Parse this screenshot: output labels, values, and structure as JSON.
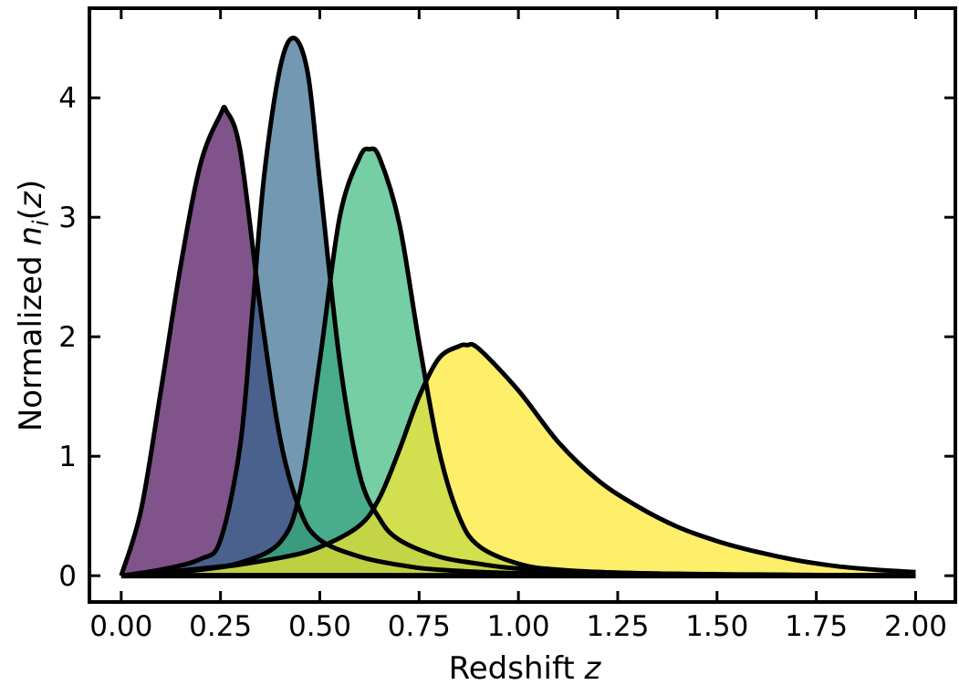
{
  "chart_data": {
    "type": "area",
    "title": "",
    "xlabel": "Redshift",
    "xlabel_var": "z",
    "ylabel_prefix": "Normalized ",
    "ylabel_func": "n",
    "ylabel_sub": "i",
    "ylabel_open": "(",
    "ylabel_var": "z",
    "ylabel_close": ")",
    "xlim": [
      -0.08,
      2.1
    ],
    "ylim": [
      -0.22,
      4.75
    ],
    "xticks": [
      0.0,
      0.25,
      0.5,
      0.75,
      1.0,
      1.25,
      1.5,
      1.75,
      2.0
    ],
    "xtick_labels": [
      "0.00",
      "0.25",
      "0.50",
      "0.75",
      "1.00",
      "1.25",
      "1.50",
      "1.75",
      "2.00"
    ],
    "yticks": [
      0,
      1,
      2,
      3,
      4
    ],
    "ytick_labels": [
      "0",
      "1",
      "2",
      "3",
      "4"
    ],
    "grid": false,
    "fill_opacity": 0.68,
    "line_color": "#000000",
    "series": [
      {
        "color": "#440154",
        "peak_z": 0.265,
        "peak": 3.89,
        "x": [
          0.0,
          0.05,
          0.1,
          0.15,
          0.2,
          0.25,
          0.265,
          0.3,
          0.35,
          0.4,
          0.45,
          0.5,
          0.6,
          0.7,
          0.8,
          1.0,
          1.2,
          1.5,
          2.0
        ],
        "y": [
          0.0,
          0.55,
          1.55,
          2.6,
          3.45,
          3.86,
          3.89,
          3.55,
          2.25,
          1.15,
          0.55,
          0.3,
          0.16,
          0.09,
          0.05,
          0.02,
          0.01,
          0.0,
          0.0
        ]
      },
      {
        "color": "#31688e",
        "peak_z": 0.435,
        "peak": 4.5,
        "x": [
          0.0,
          0.1,
          0.2,
          0.25,
          0.3,
          0.33,
          0.36,
          0.4,
          0.435,
          0.47,
          0.5,
          0.55,
          0.6,
          0.65,
          0.7,
          0.8,
          0.9,
          1.0,
          1.2,
          1.5,
          2.0
        ],
        "y": [
          0.0,
          0.05,
          0.14,
          0.3,
          1.1,
          2.2,
          3.35,
          4.25,
          4.5,
          4.2,
          3.3,
          1.8,
          0.85,
          0.48,
          0.3,
          0.16,
          0.1,
          0.06,
          0.03,
          0.01,
          0.0
        ]
      },
      {
        "color": "#35b779",
        "peak_z": 0.625,
        "peak": 3.57,
        "x": [
          0.0,
          0.2,
          0.3,
          0.4,
          0.45,
          0.5,
          0.55,
          0.6,
          0.625,
          0.65,
          0.7,
          0.75,
          0.8,
          0.85,
          0.9,
          1.0,
          1.1,
          1.3,
          1.6,
          2.0
        ],
        "y": [
          0.0,
          0.06,
          0.11,
          0.28,
          0.7,
          1.8,
          3.0,
          3.5,
          3.57,
          3.5,
          2.95,
          1.95,
          1.05,
          0.5,
          0.25,
          0.1,
          0.05,
          0.02,
          0.01,
          0.0
        ]
      },
      {
        "color": "#fde725",
        "peak_z": 0.87,
        "peak": 1.93,
        "x": [
          0.0,
          0.2,
          0.4,
          0.5,
          0.6,
          0.65,
          0.7,
          0.75,
          0.8,
          0.85,
          0.87,
          0.9,
          1.0,
          1.1,
          1.2,
          1.3,
          1.4,
          1.5,
          1.6,
          1.7,
          1.8,
          1.9,
          2.0
        ],
        "y": [
          0.0,
          0.05,
          0.15,
          0.24,
          0.42,
          0.65,
          1.05,
          1.5,
          1.82,
          1.92,
          1.93,
          1.9,
          1.55,
          1.12,
          0.8,
          0.58,
          0.41,
          0.29,
          0.2,
          0.13,
          0.08,
          0.05,
          0.03
        ]
      }
    ]
  }
}
